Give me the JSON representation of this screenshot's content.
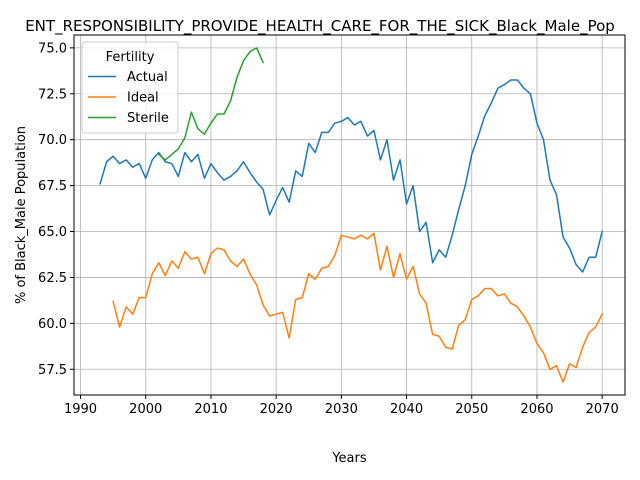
{
  "chart_data": {
    "type": "line",
    "title": "ENT_RESPONSIBILITY_PROVIDE_HEALTH_CARE_FOR_THE_SICK_Black_Male_Pop",
    "xlabel": "Years",
    "ylabel": "% of Black_Male Population",
    "xlim": [
      1989,
      2073.5
    ],
    "ylim": [
      56.1,
      75.7
    ],
    "xticks": [
      1990,
      2000,
      2010,
      2020,
      2030,
      2040,
      2050,
      2060,
      2070
    ],
    "yticks": [
      57.5,
      60.0,
      62.5,
      65.0,
      67.5,
      70.0,
      72.5,
      75.0
    ],
    "ytick_labels": [
      "57.5",
      "60.0",
      "62.5",
      "65.0",
      "67.5",
      "70.0",
      "72.5",
      "75.0"
    ],
    "grid": true,
    "legend": {
      "title": "Fertility",
      "position": "upper-left"
    },
    "series": [
      {
        "name": "Actual",
        "color": "#1f77b4",
        "x": [
          1993,
          1994,
          1995,
          1996,
          1997,
          1998,
          1999,
          2000,
          2001,
          2002,
          2003,
          2004,
          2005,
          2006,
          2007,
          2008,
          2009,
          2010,
          2011,
          2012,
          2013,
          2014,
          2015,
          2016,
          2017,
          2018,
          2019,
          2020,
          2021,
          2022,
          2023,
          2024,
          2025,
          2026,
          2027,
          2028,
          2029,
          2030,
          2031,
          2032,
          2033,
          2034,
          2035,
          2036,
          2037,
          2038,
          2039,
          2040,
          2041,
          2042,
          2043,
          2044,
          2045,
          2046,
          2047,
          2048,
          2049,
          2050,
          2051,
          2052,
          2053,
          2054,
          2055,
          2056,
          2057,
          2058,
          2059,
          2060,
          2061,
          2062,
          2063,
          2064,
          2065,
          2066,
          2067,
          2068,
          2069,
          2070
        ],
        "values": [
          67.6,
          68.8,
          69.1,
          68.7,
          68.9,
          68.5,
          68.7,
          67.9,
          68.9,
          69.3,
          68.8,
          68.7,
          68.0,
          69.3,
          68.8,
          69.2,
          67.9,
          68.7,
          68.2,
          67.8,
          68.0,
          68.3,
          68.8,
          68.2,
          67.7,
          67.3,
          65.9,
          66.7,
          67.4,
          66.6,
          68.3,
          68.0,
          69.8,
          69.3,
          70.4,
          70.4,
          70.9,
          71.0,
          71.2,
          70.8,
          71.0,
          70.2,
          70.5,
          68.9,
          70.0,
          67.8,
          68.9,
          66.5,
          67.5,
          65.0,
          65.5,
          63.3,
          64.0,
          63.6,
          64.8,
          66.2,
          67.5,
          69.2,
          70.2,
          71.3,
          72.0,
          72.8,
          73.0,
          73.25,
          73.25,
          72.8,
          72.5,
          70.9,
          70.0,
          67.8,
          67.0,
          64.7,
          64.1,
          63.2,
          62.8,
          63.6,
          63.6,
          65.0
        ]
      },
      {
        "name": "Ideal",
        "color": "#ff7f0e",
        "x": [
          1995,
          1996,
          1997,
          1998,
          1999,
          2000,
          2001,
          2002,
          2003,
          2004,
          2005,
          2006,
          2007,
          2008,
          2009,
          2010,
          2011,
          2012,
          2013,
          2014,
          2015,
          2016,
          2017,
          2018,
          2019,
          2020,
          2021,
          2022,
          2023,
          2024,
          2025,
          2026,
          2027,
          2028,
          2029,
          2030,
          2031,
          2032,
          2033,
          2034,
          2035,
          2036,
          2037,
          2038,
          2039,
          2040,
          2041,
          2042,
          2043,
          2044,
          2045,
          2046,
          2047,
          2048,
          2049,
          2050,
          2051,
          2052,
          2053,
          2054,
          2055,
          2056,
          2057,
          2058,
          2059,
          2060,
          2061,
          2062,
          2063,
          2064,
          2065,
          2066,
          2067,
          2068,
          2069,
          2070
        ],
        "values": [
          61.2,
          59.8,
          60.9,
          60.5,
          61.4,
          61.4,
          62.7,
          63.3,
          62.6,
          63.4,
          63.0,
          63.9,
          63.5,
          63.6,
          62.7,
          63.8,
          64.1,
          64.0,
          63.4,
          63.1,
          63.5,
          62.7,
          62.1,
          61.0,
          60.4,
          60.5,
          60.6,
          59.2,
          61.3,
          61.4,
          62.7,
          62.4,
          63.0,
          63.1,
          63.7,
          64.8,
          64.7,
          64.6,
          64.8,
          64.6,
          64.9,
          62.9,
          64.2,
          62.5,
          63.8,
          62.4,
          63.1,
          61.6,
          61.1,
          59.4,
          59.3,
          58.7,
          58.6,
          59.9,
          60.2,
          61.3,
          61.5,
          61.9,
          61.9,
          61.5,
          61.6,
          61.1,
          60.9,
          60.4,
          59.8,
          58.9,
          58.4,
          57.5,
          57.7,
          56.8,
          57.8,
          57.6,
          58.7,
          59.5,
          59.8,
          60.5
        ]
      },
      {
        "name": "Sterile",
        "color": "#2ca02c",
        "x": [
          2002,
          2003,
          2004,
          2005,
          2006,
          2007,
          2008,
          2009,
          2010,
          2011,
          2012,
          2013,
          2014,
          2015,
          2016,
          2017,
          2018
        ],
        "values": [
          69.2,
          68.9,
          69.2,
          69.5,
          70.1,
          71.5,
          70.6,
          70.3,
          70.9,
          71.4,
          71.4,
          72.1,
          73.4,
          74.3,
          74.8,
          75.0,
          74.2
        ]
      }
    ]
  }
}
